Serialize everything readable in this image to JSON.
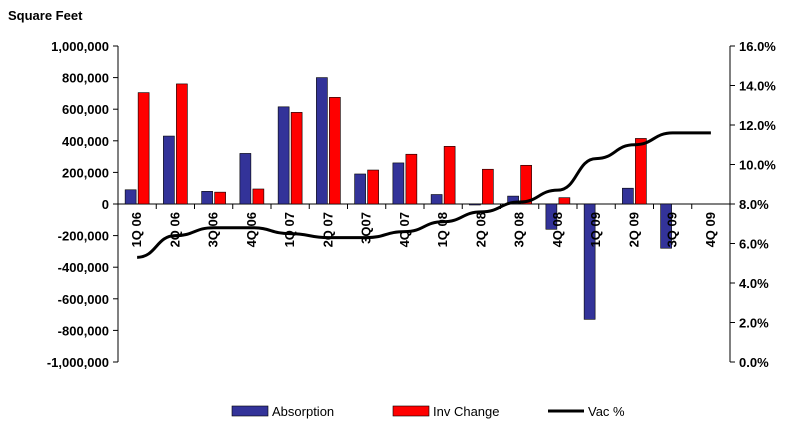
{
  "chart_data": {
    "type": "bar",
    "title": "Square Feet",
    "categories": [
      "1Q 06",
      "2Q 06",
      "3Q 06",
      "4Q 06",
      "1Q 07",
      "2Q 07",
      "3Q07",
      "4Q 07",
      "1Q 08",
      "2Q 08",
      "3Q 08",
      "4Q 08",
      "1Q 09",
      "2Q 09",
      "3Q 09",
      "4Q 09"
    ],
    "series": [
      {
        "name": "Absorption",
        "kind": "bar",
        "axis": "left",
        "color": "#333399",
        "values": [
          90000,
          430000,
          80000,
          320000,
          615000,
          800000,
          190000,
          260000,
          60000,
          -5000,
          50000,
          -160000,
          -730000,
          100000,
          -280000,
          null
        ]
      },
      {
        "name": "Inv Change",
        "kind": "bar",
        "axis": "left",
        "color": "#ff0000",
        "values": [
          705000,
          760000,
          75000,
          95000,
          580000,
          675000,
          215000,
          315000,
          365000,
          220000,
          245000,
          40000,
          null,
          415000,
          null,
          null
        ]
      },
      {
        "name": "Vac %",
        "kind": "line",
        "axis": "right",
        "color": "#000000",
        "values": [
          5.3,
          6.4,
          6.8,
          6.8,
          6.5,
          6.3,
          6.3,
          6.6,
          7.1,
          7.6,
          8.1,
          8.7,
          10.3,
          11.0,
          11.6,
          11.6
        ]
      }
    ],
    "y_left": {
      "ylim": [
        -1000000,
        1000000
      ],
      "ticks": [
        -1000000,
        -800000,
        -600000,
        -400000,
        -200000,
        0,
        200000,
        400000,
        600000,
        800000,
        1000000
      ],
      "tick_labels": [
        "-1,000,000",
        "-800,000",
        "-600,000",
        "-400,000",
        "-200,000",
        "0",
        "200,000",
        "400,000",
        "600,000",
        "800,000",
        "1,000,000"
      ]
    },
    "y_right": {
      "ylim": [
        0,
        16
      ],
      "ticks": [
        0,
        2,
        4,
        6,
        8,
        10,
        12,
        14,
        16
      ],
      "tick_labels": [
        "0.0%",
        "2.0%",
        "4.0%",
        "6.0%",
        "8.0%",
        "10.0%",
        "12.0%",
        "14.0%",
        "16.0%"
      ]
    },
    "legend": {
      "placement": "bottom",
      "items": [
        "Absorption",
        "Inv Change",
        "Vac %"
      ]
    },
    "grid": false
  }
}
